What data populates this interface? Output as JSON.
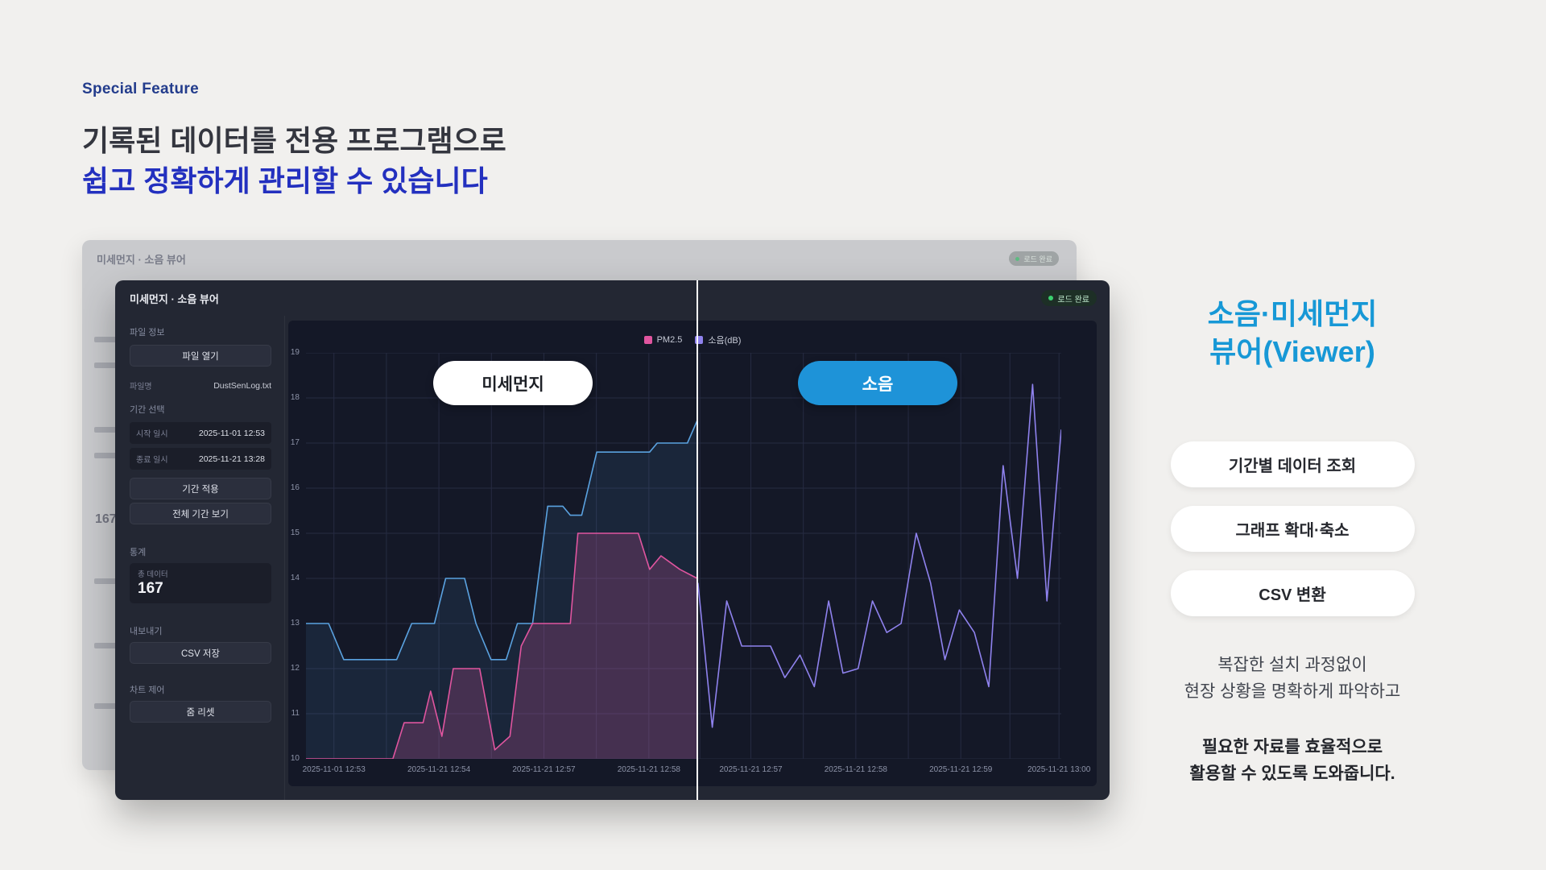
{
  "page": {
    "eyebrow": "Special Feature",
    "heading_line1": "기록된 데이터를 전용 프로그램으로",
    "heading_line2": "쉽고 정확하게 관리할 수 있습니다"
  },
  "app": {
    "title": "미세먼지 · 소음 뷰어",
    "status_badge": "로드 완료",
    "sidebar": {
      "file_section": "파일 정보",
      "open_button": "파일 열기",
      "filename_label": "파일명",
      "filename_value": "DustSenLog.txt",
      "period_section": "기간 선택",
      "start_label": "시작 일시",
      "start_value": "2025-11-01 12:53",
      "end_label": "종료 일시",
      "end_value": "2025-11-21 13:28",
      "apply_button": "기간 적용",
      "full_range_button": "전체 기간 보기",
      "stats_section": "통계",
      "total_label": "총 데이터",
      "total_value": "167",
      "export_section": "내보내기",
      "csv_button": "CSV 저장",
      "chart_section": "차트 제어",
      "zoom_reset_button": "줌 리셋"
    },
    "overlay": {
      "dust_label": "미세먼지",
      "noise_label": "소음"
    }
  },
  "right_panel": {
    "title_line1": "소음·미세먼지",
    "title_line2": "뷰어(Viewer)",
    "features": [
      "기간별 데이터 조회",
      "그래프 확대·축소",
      "CSV 변환"
    ],
    "desc_line1": "복잡한 설치 과정없이",
    "desc_line2": "현장 상황을 명확하게 파악하고",
    "emphasis_line1": "필요한 자료를 효율적으로",
    "emphasis_line2": "활용할 수 있도록 도와줍니다."
  },
  "colors": {
    "accent_blue": "#1798d6",
    "heading_blue": "#2330bf",
    "navy_eyebrow": "#233c8c",
    "noise_pill": "#1e93d8",
    "status_green": "#3ad06e",
    "line_blue": "#5aa2e0",
    "line_pink": "#e0559f",
    "line_purple": "#8f82ee"
  },
  "chart_data": {
    "type": "line",
    "title": "",
    "xlabel": "",
    "ylabel": "",
    "ylim": [
      10,
      19
    ],
    "yticks": [
      10,
      11,
      12,
      13,
      14,
      15,
      16,
      17,
      18,
      19
    ],
    "grid": true,
    "legend_position": "top-center",
    "divider_pos": 0.518,
    "legend": [
      {
        "label": "PM2.5",
        "color": "#e0559f"
      },
      {
        "label": "소음(dB)",
        "color": "#8f82ee"
      }
    ],
    "x_ticks": [
      {
        "label": "2025-11-01 12:53",
        "pos": 0.037
      },
      {
        "label": "2025-11-21 12:54",
        "pos": 0.176
      },
      {
        "label": "2025-11-21 12:57",
        "pos": 0.315
      },
      {
        "label": "2025-11-21 12:58",
        "pos": 0.454
      },
      {
        "label": "2025-11-21 12:57",
        "pos": 0.589
      },
      {
        "label": "2025-11-21 12:58",
        "pos": 0.728
      },
      {
        "label": "2025-11-21 12:59",
        "pos": 0.867
      },
      {
        "label": "2025-11-21 13:00",
        "pos": 0.997
      }
    ],
    "series": [
      {
        "name": "미세먼지",
        "color": "#5aa2e0",
        "fill": "rgba(90,162,224,0.10)",
        "points": [
          [
            0.0,
            13.0
          ],
          [
            0.03,
            13.0
          ],
          [
            0.05,
            12.2
          ],
          [
            0.12,
            12.2
          ],
          [
            0.14,
            13.0
          ],
          [
            0.17,
            13.0
          ],
          [
            0.185,
            14.0
          ],
          [
            0.21,
            14.0
          ],
          [
            0.225,
            13.0
          ],
          [
            0.245,
            12.2
          ],
          [
            0.265,
            12.2
          ],
          [
            0.28,
            13.0
          ],
          [
            0.3,
            13.0
          ],
          [
            0.32,
            15.6
          ],
          [
            0.34,
            15.6
          ],
          [
            0.35,
            15.4
          ],
          [
            0.365,
            15.4
          ],
          [
            0.385,
            16.8
          ],
          [
            0.455,
            16.8
          ],
          [
            0.465,
            17.0
          ],
          [
            0.505,
            17.0
          ],
          [
            0.518,
            17.5
          ]
        ]
      },
      {
        "name": "PM2.5",
        "color": "#e0559f",
        "fill": "rgba(224,85,159,0.22)",
        "points": [
          [
            0.0,
            10.0
          ],
          [
            0.115,
            10.0
          ],
          [
            0.13,
            10.8
          ],
          [
            0.155,
            10.8
          ],
          [
            0.165,
            11.5
          ],
          [
            0.18,
            10.5
          ],
          [
            0.195,
            12.0
          ],
          [
            0.23,
            12.0
          ],
          [
            0.25,
            10.2
          ],
          [
            0.27,
            10.5
          ],
          [
            0.285,
            12.5
          ],
          [
            0.3,
            13.0
          ],
          [
            0.35,
            13.0
          ],
          [
            0.36,
            15.0
          ],
          [
            0.44,
            15.0
          ],
          [
            0.455,
            14.2
          ],
          [
            0.47,
            14.5
          ],
          [
            0.495,
            14.2
          ],
          [
            0.518,
            14.0
          ]
        ]
      },
      {
        "name": "소음(dB)",
        "color": "#8f82ee",
        "fill": null,
        "points": [
          [
            0.519,
            13.9
          ],
          [
            0.538,
            10.7
          ],
          [
            0.557,
            13.5
          ],
          [
            0.577,
            12.5
          ],
          [
            0.596,
            12.5
          ],
          [
            0.615,
            12.5
          ],
          [
            0.634,
            11.8
          ],
          [
            0.654,
            12.3
          ],
          [
            0.673,
            11.6
          ],
          [
            0.692,
            13.5
          ],
          [
            0.711,
            11.9
          ],
          [
            0.731,
            12.0
          ],
          [
            0.75,
            13.5
          ],
          [
            0.769,
            12.8
          ],
          [
            0.788,
            13.0
          ],
          [
            0.808,
            15.0
          ],
          [
            0.827,
            13.9
          ],
          [
            0.846,
            12.2
          ],
          [
            0.865,
            13.3
          ],
          [
            0.885,
            12.8
          ],
          [
            0.904,
            11.6
          ],
          [
            0.923,
            16.5
          ],
          [
            0.942,
            14.0
          ],
          [
            0.962,
            18.3
          ],
          [
            0.981,
            13.5
          ],
          [
            1.0,
            17.3
          ]
        ]
      }
    ]
  }
}
